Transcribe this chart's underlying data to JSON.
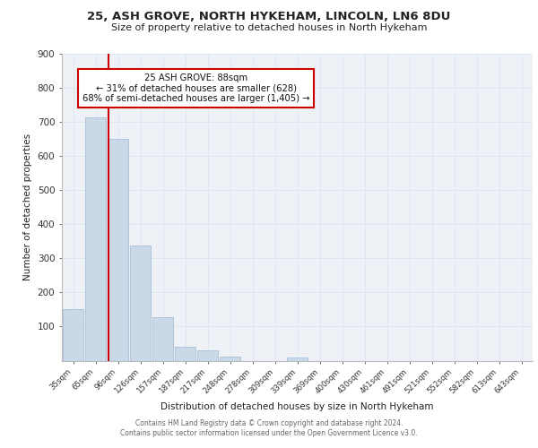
{
  "title1": "25, ASH GROVE, NORTH HYKEHAM, LINCOLN, LN6 8DU",
  "title2": "Size of property relative to detached houses in North Hykeham",
  "xlabel": "Distribution of detached houses by size in North Hykeham",
  "ylabel": "Number of detached properties",
  "categories": [
    "35sqm",
    "65sqm",
    "96sqm",
    "126sqm",
    "157sqm",
    "187sqm",
    "217sqm",
    "248sqm",
    "278sqm",
    "309sqm",
    "339sqm",
    "369sqm",
    "400sqm",
    "430sqm",
    "461sqm",
    "491sqm",
    "521sqm",
    "552sqm",
    "582sqm",
    "613sqm",
    "643sqm"
  ],
  "values": [
    150,
    713,
    650,
    338,
    128,
    42,
    30,
    12,
    0,
    0,
    8,
    0,
    0,
    0,
    0,
    0,
    0,
    0,
    0,
    0,
    0
  ],
  "bar_color": "#c9d9e8",
  "bar_edge_color": "#a0b8d0",
  "marker_color": "#cc0000",
  "annotation_line1": "25 ASH GROVE: 88sqm",
  "annotation_line2": "← 31% of detached houses are smaller (628)",
  "annotation_line3": "68% of semi-detached houses are larger (1,405) →",
  "annotation_box_color": "#ffffff",
  "annotation_box_edge": "#cc0000",
  "grid_color": "#dce8f0",
  "background_color": "#eef2f7",
  "footer1": "Contains HM Land Registry data © Crown copyright and database right 2024.",
  "footer2": "Contains public sector information licensed under the Open Government Licence v3.0.",
  "ylim": [
    0,
    900
  ],
  "yticks": [
    0,
    100,
    200,
    300,
    400,
    500,
    600,
    700,
    800,
    900
  ]
}
